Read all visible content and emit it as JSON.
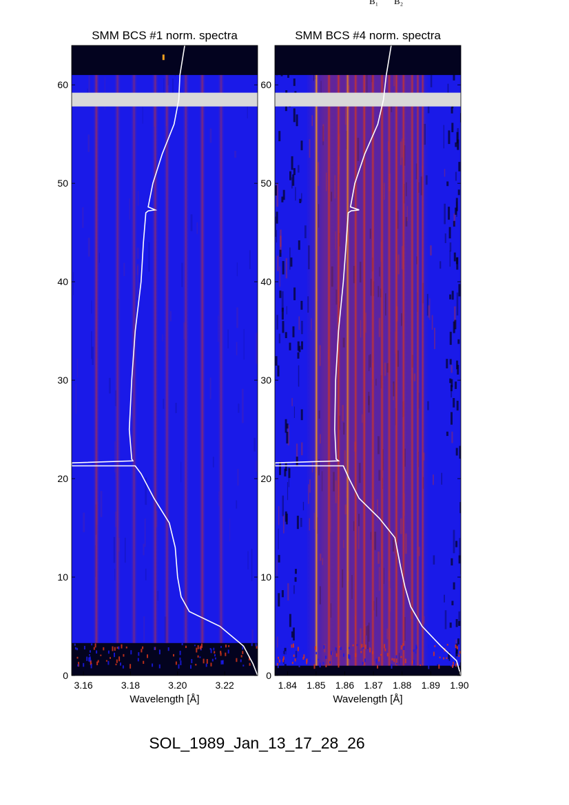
{
  "caption": "SOL_1989_Jan_13_17_28_26",
  "top_labels": [
    "B₁",
    "B₂"
  ],
  "chart_data": [
    {
      "type": "heatmap",
      "title": "SMM BCS #1 norm. spectra",
      "xlabel": "Wavelength [Å]",
      "ylabel": "",
      "xlim": [
        3.155,
        3.234
      ],
      "ylim": [
        0,
        64
      ],
      "xticks": [
        "3.16",
        "3.18",
        "3.20",
        "3.22"
      ],
      "yticks": [
        "0",
        "10",
        "20",
        "30",
        "40",
        "50",
        "60"
      ],
      "grid": false,
      "palette": [
        "#03031f",
        "#1a1ae8",
        "#d8361a",
        "#ffb01e"
      ],
      "spectral_lines": [
        {
          "x": 3.1655,
          "strength": 0.55
        },
        {
          "x": 3.1745,
          "strength": 0.25
        },
        {
          "x": 3.1815,
          "strength": 0.2
        },
        {
          "x": 3.1905,
          "strength": 0.35
        },
        {
          "x": 3.1955,
          "strength": 0.3
        },
        {
          "x": 3.2035,
          "strength": 0.25
        },
        {
          "x": 3.2105,
          "strength": 0.45
        },
        {
          "x": 3.2185,
          "strength": 0.2
        }
      ],
      "data_gaps": [
        {
          "y_from": 61,
          "y_to": 64
        },
        {
          "y_from": 57.8,
          "y_to": 59.2
        },
        {
          "y_from": 0,
          "y_to": 3.3
        }
      ],
      "overlay_line": {
        "color": "#ffffff",
        "points": [
          [
            3.234,
            0
          ],
          [
            3.232,
            1.2
          ],
          [
            3.228,
            3
          ],
          [
            3.218,
            5
          ],
          [
            3.205,
            6.5
          ],
          [
            3.2015,
            8
          ],
          [
            3.2,
            10
          ],
          [
            3.199,
            13
          ],
          [
            3.1965,
            15.5
          ],
          [
            3.19,
            18
          ],
          [
            3.1845,
            20.5
          ],
          [
            3.182,
            21.3
          ],
          [
            3.155,
            21.3
          ],
          [
            3.155,
            21.6
          ],
          [
            3.181,
            21.8
          ],
          [
            3.1805,
            22
          ],
          [
            3.1795,
            25
          ],
          [
            3.1805,
            30
          ],
          [
            3.182,
            35
          ],
          [
            3.1845,
            40
          ],
          [
            3.1855,
            44
          ],
          [
            3.1865,
            47
          ],
          [
            3.1875,
            47.2
          ],
          [
            3.1905,
            47.3
          ],
          [
            3.1875,
            47.6
          ],
          [
            3.1895,
            50
          ],
          [
            3.1935,
            53
          ],
          [
            3.1985,
            56
          ],
          [
            3.2005,
            58.5
          ],
          [
            3.201,
            61
          ],
          [
            3.203,
            64
          ]
        ]
      },
      "markers": [
        {
          "x": 3.194,
          "y": 62.8,
          "color": "#f0a020"
        }
      ]
    },
    {
      "type": "heatmap",
      "title": "SMM BCS #4 norm. spectra",
      "xlabel": "Wavelength [Å]",
      "ylabel": "",
      "xlim": [
        1.8356,
        1.9005
      ],
      "ylim": [
        0,
        64
      ],
      "xticks": [
        "1.84",
        "1.85",
        "1.86",
        "1.87",
        "1.88",
        "1.89",
        "1.90"
      ],
      "yticks": [
        "0",
        "10",
        "20",
        "30",
        "40",
        "50",
        "60"
      ],
      "grid": false,
      "palette": [
        "#03031f",
        "#1a1ae8",
        "#d8361a",
        "#ffb01e"
      ],
      "spectral_lines": [
        {
          "x": 1.8501,
          "strength": 1.0
        },
        {
          "x": 1.8545,
          "strength": 0.75
        },
        {
          "x": 1.8578,
          "strength": 0.8
        },
        {
          "x": 1.861,
          "strength": 0.85
        },
        {
          "x": 1.8638,
          "strength": 0.7
        },
        {
          "x": 1.8668,
          "strength": 0.75
        },
        {
          "x": 1.8698,
          "strength": 0.65
        },
        {
          "x": 1.873,
          "strength": 0.7
        },
        {
          "x": 1.8755,
          "strength": 0.65
        },
        {
          "x": 1.878,
          "strength": 0.75
        },
        {
          "x": 1.8805,
          "strength": 0.6
        },
        {
          "x": 1.8835,
          "strength": 0.55
        },
        {
          "x": 1.8855,
          "strength": 0.5
        },
        {
          "x": 1.8872,
          "strength": 0.45
        }
      ],
      "data_gaps": [
        {
          "y_from": 61,
          "y_to": 64
        },
        {
          "y_from": 57.8,
          "y_to": 59.2
        },
        {
          "y_from": 0,
          "y_to": 1
        }
      ],
      "overlay_line": {
        "color": "#ffffff",
        "points": [
          [
            1.9005,
            0
          ],
          [
            1.899,
            1.5
          ],
          [
            1.8935,
            3
          ],
          [
            1.887,
            5
          ],
          [
            1.883,
            7
          ],
          [
            1.881,
            9
          ],
          [
            1.8795,
            11
          ],
          [
            1.8775,
            14
          ],
          [
            1.872,
            16
          ],
          [
            1.865,
            18
          ],
          [
            1.8615,
            20
          ],
          [
            1.8595,
            21.3
          ],
          [
            1.8356,
            21.3
          ],
          [
            1.8356,
            21.6
          ],
          [
            1.8578,
            21.8
          ],
          [
            1.857,
            22
          ],
          [
            1.8565,
            25
          ],
          [
            1.8568,
            30
          ],
          [
            1.8578,
            35
          ],
          [
            1.8595,
            40
          ],
          [
            1.8605,
            44
          ],
          [
            1.8612,
            47
          ],
          [
            1.8622,
            47.2
          ],
          [
            1.865,
            47.3
          ],
          [
            1.862,
            47.6
          ],
          [
            1.8635,
            50
          ],
          [
            1.867,
            53
          ],
          [
            1.8715,
            56
          ],
          [
            1.8735,
            58.5
          ],
          [
            1.8745,
            61
          ],
          [
            1.8762,
            64
          ]
        ]
      },
      "markers": []
    }
  ]
}
